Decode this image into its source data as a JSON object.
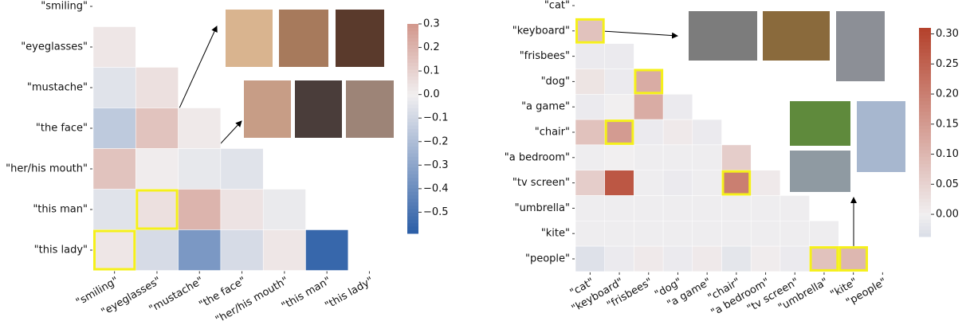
{
  "chart_data": [
    {
      "type": "heatmap",
      "labels": [
        "\"smiling\"",
        "\"eyeglasses\"",
        "\"mustache\"",
        "\"the face\"",
        "\"her/his mouth\"",
        "\"this man\"",
        "\"this lady\""
      ],
      "values": [
        [],
        [
          0.03
        ],
        [
          -0.05,
          0.05
        ],
        [
          -0.15,
          0.15,
          0.02
        ],
        [
          0.15,
          0.01,
          -0.03,
          -0.05
        ],
        [
          -0.05,
          0.05,
          0.2,
          0.04,
          -0.02
        ],
        [
          0.03,
          -0.08,
          -0.35,
          -0.08,
          0.03,
          -0.55
        ]
      ],
      "vlim": [
        -0.59,
        0.3
      ],
      "cbar_ticks": [
        0.3,
        0.2,
        0.1,
        {
          "value": 0,
          "label": "0.0"
        },
        {
          "value": -0.1,
          "label": "−0.1"
        },
        {
          "value": -0.2,
          "label": "−0.2"
        },
        {
          "value": -0.3,
          "label": "−0.3"
        },
        {
          "value": -0.4,
          "label": "−0.4"
        },
        {
          "value": -0.5,
          "label": "−0.5"
        }
      ],
      "cmap": [
        "#2a5da6",
        "#f1eff0",
        "#b4412b"
      ],
      "highlight": [
        [
          6,
          0
        ],
        [
          5,
          1
        ]
      ]
    },
    {
      "type": "heatmap",
      "labels": [
        "\"cat\"",
        "\"keyboard\"",
        "\"frisbees\"",
        "\"dog\"",
        "\"a game\"",
        "\"chair\"",
        "\"a bedroom\"",
        "\"tv screen\"",
        "\"umbrella\"",
        "\"kite\"",
        "\"people\""
      ],
      "values": [
        [],
        [
          0.08
        ],
        [
          -0.01,
          -0.01
        ],
        [
          0.02,
          -0.01,
          0.12
        ],
        [
          -0.01,
          0,
          0.12,
          -0.01
        ],
        [
          0.08,
          0.15,
          -0.01,
          0.01,
          -0.01
        ],
        [
          -0.005,
          0,
          -0.005,
          -0.005,
          -0.005,
          0.06
        ],
        [
          0.06,
          0.27,
          -0.005,
          -0.01,
          -0.005,
          0.2,
          0.01
        ],
        [
          -0.005,
          -0.005,
          -0.005,
          -0.005,
          -0.005,
          -0.005,
          -0.005,
          -0.005
        ],
        [
          -0.005,
          -0.005,
          -0.005,
          -0.005,
          -0.005,
          -0.005,
          -0.005,
          -0.005,
          -0.005
        ],
        [
          -0.03,
          -0.01,
          0.01,
          -0.01,
          0.01,
          -0.02,
          0.005,
          -0.01,
          0.08,
          0.1
        ]
      ],
      "vlim": [
        -0.037,
        0.31
      ],
      "cbar_ticks": [
        {
          "value": 0.3,
          "label": "0.30"
        },
        {
          "value": 0.25,
          "label": "0.25"
        },
        {
          "value": 0.2,
          "label": "0.20"
        },
        {
          "value": 0.15,
          "label": "0.15"
        },
        {
          "value": 0.1,
          "label": "0.10"
        },
        {
          "value": 0.05,
          "label": "0.05"
        },
        {
          "value": 0,
          "label": "0.00"
        }
      ],
      "cmap": [
        "#2a5da6",
        "#f1eff0",
        "#b4412b"
      ],
      "highlight": [
        [
          1,
          0
        ],
        [
          3,
          2
        ],
        [
          5,
          1
        ],
        [
          7,
          5
        ],
        [
          10,
          8
        ],
        [
          10,
          9
        ]
      ]
    }
  ]
}
